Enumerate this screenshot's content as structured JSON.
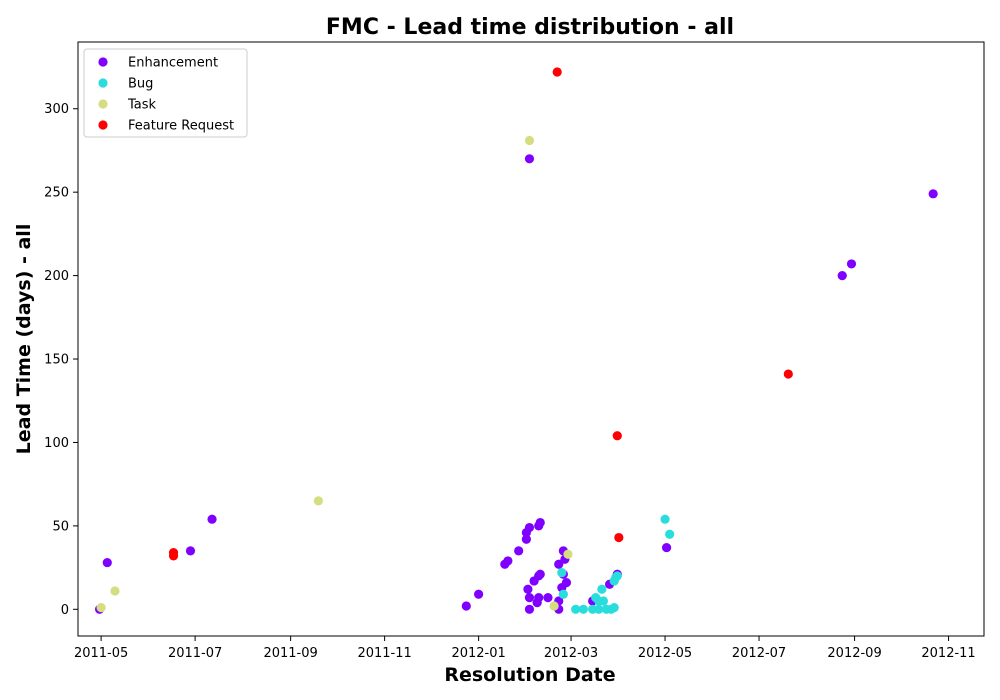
{
  "chart_data": {
    "type": "scatter",
    "title": "FMC - Lead time distribution - all",
    "xlabel": "Resolution Date",
    "ylabel": "Lead Time (days) - all",
    "xlim": [
      "2011-04-16",
      "2012-11-24"
    ],
    "ylim": [
      -16,
      340
    ],
    "x_ticks": [
      "2011-05",
      "2011-07",
      "2011-09",
      "2011-11",
      "2012-01",
      "2012-03",
      "2012-05",
      "2012-07",
      "2012-09",
      "2012-11"
    ],
    "y_ticks": [
      0,
      50,
      100,
      150,
      200,
      250,
      300
    ],
    "grid": false,
    "legend_position": "top-left",
    "series": [
      {
        "name": "Enhancement",
        "color": "#8000ff",
        "points": [
          [
            "2011-04-30",
            0
          ],
          [
            "2011-05-05",
            28
          ],
          [
            "2011-06-28",
            35
          ],
          [
            "2011-07-12",
            54
          ],
          [
            "2011-12-24",
            2
          ],
          [
            "2012-01-01",
            9
          ],
          [
            "2012-01-18",
            27
          ],
          [
            "2012-01-20",
            29
          ],
          [
            "2012-01-27",
            35
          ],
          [
            "2012-02-01",
            46
          ],
          [
            "2012-02-01",
            42
          ],
          [
            "2012-02-03",
            49
          ],
          [
            "2012-02-09",
            50
          ],
          [
            "2012-02-10",
            52
          ],
          [
            "2012-02-03",
            270
          ],
          [
            "2012-02-02",
            12
          ],
          [
            "2012-02-03",
            7
          ],
          [
            "2012-02-03",
            0
          ],
          [
            "2012-02-08",
            4
          ],
          [
            "2012-02-09",
            7
          ],
          [
            "2012-02-06",
            17
          ],
          [
            "2012-02-09",
            20
          ],
          [
            "2012-02-10",
            21
          ],
          [
            "2012-02-15",
            7
          ],
          [
            "2012-02-22",
            5
          ],
          [
            "2012-02-22",
            0
          ],
          [
            "2012-02-22",
            27
          ],
          [
            "2012-02-25",
            35
          ],
          [
            "2012-02-24",
            13
          ],
          [
            "2012-02-27",
            16
          ],
          [
            "2012-02-26",
            30
          ],
          [
            "2012-02-25",
            21
          ],
          [
            "2012-03-15",
            5
          ],
          [
            "2012-03-26",
            15
          ],
          [
            "2012-03-31",
            21
          ],
          [
            "2012-05-02",
            37
          ],
          [
            "2012-08-24",
            200
          ],
          [
            "2012-08-30",
            207
          ],
          [
            "2012-10-22",
            249
          ]
        ]
      },
      {
        "name": "Bug",
        "color": "#2adddd",
        "points": [
          [
            "2012-02-24",
            22
          ],
          [
            "2012-02-25",
            9
          ],
          [
            "2012-03-04",
            0
          ],
          [
            "2012-03-09",
            0
          ],
          [
            "2012-03-15",
            0
          ],
          [
            "2012-03-17",
            7
          ],
          [
            "2012-03-19",
            0
          ],
          [
            "2012-03-19",
            5
          ],
          [
            "2012-03-21",
            12
          ],
          [
            "2012-03-22",
            5
          ],
          [
            "2012-03-24",
            0
          ],
          [
            "2012-03-27",
            0
          ],
          [
            "2012-03-29",
            1
          ],
          [
            "2012-03-29",
            17
          ],
          [
            "2012-03-30",
            19
          ],
          [
            "2012-03-31",
            20
          ],
          [
            "2012-05-01",
            54
          ],
          [
            "2012-05-04",
            45
          ]
        ]
      },
      {
        "name": "Task",
        "color": "#d4dd80",
        "points": [
          [
            "2011-05-01",
            1
          ],
          [
            "2011-05-10",
            11
          ],
          [
            "2011-09-19",
            65
          ],
          [
            "2012-02-03",
            281
          ],
          [
            "2012-02-19",
            2
          ],
          [
            "2012-02-28",
            33
          ]
        ]
      },
      {
        "name": "Feature Request",
        "color": "#ff0000",
        "points": [
          [
            "2011-06-17",
            34
          ],
          [
            "2011-06-17",
            32
          ],
          [
            "2012-02-21",
            322
          ],
          [
            "2012-03-31",
            104
          ],
          [
            "2012-04-01",
            43
          ],
          [
            "2012-07-20",
            141
          ]
        ]
      }
    ]
  }
}
